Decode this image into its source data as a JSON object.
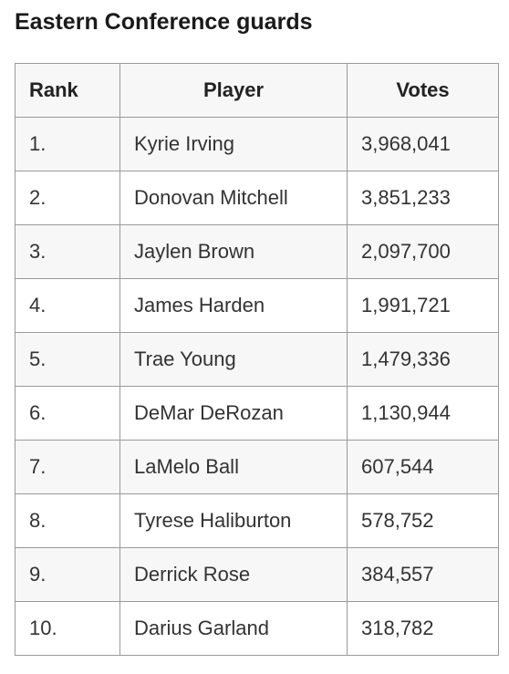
{
  "title": "Eastern Conference guards",
  "table": {
    "headers": {
      "rank": "Rank",
      "player": "Player",
      "votes": "Votes"
    },
    "rows": [
      {
        "rank": "1.",
        "player": "Kyrie Irving",
        "votes": "3,968,041"
      },
      {
        "rank": "2.",
        "player": "Donovan Mitchell",
        "votes": "3,851,233"
      },
      {
        "rank": "3.",
        "player": "Jaylen Brown",
        "votes": "2,097,700"
      },
      {
        "rank": "4.",
        "player": "James Harden",
        "votes": "1,991,721"
      },
      {
        "rank": "5.",
        "player": "Trae Young",
        "votes": "1,479,336"
      },
      {
        "rank": "6.",
        "player": "DeMar DeRozan",
        "votes": "1,130,944"
      },
      {
        "rank": "7.",
        "player": "LaMelo Ball",
        "votes": "607,544"
      },
      {
        "rank": "8.",
        "player": "Tyrese Haliburton",
        "votes": "578,752"
      },
      {
        "rank": "9.",
        "player": "Derrick Rose",
        "votes": "384,557"
      },
      {
        "rank": "10.",
        "player": "Darius Garland",
        "votes": "318,782"
      }
    ]
  }
}
